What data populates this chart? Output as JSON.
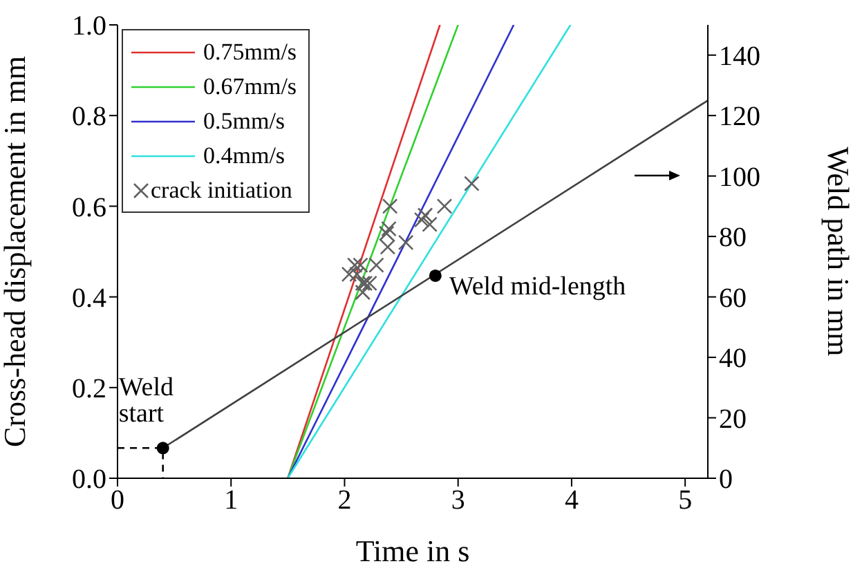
{
  "chart_data": {
    "type": "line",
    "xlabel": "Time in s",
    "ylabel": "Cross-head displacement in mm",
    "y2label": "Weld path in mm",
    "xlim": [
      0,
      5.2
    ],
    "xticks": [
      0,
      1,
      2,
      3,
      4,
      5
    ],
    "ylim": [
      0,
      1.0
    ],
    "yticks": [
      {
        "value": 0,
        "label": "0.0"
      },
      0.2,
      0.4,
      0.6,
      0.8,
      {
        "value": 1,
        "label": "1.0"
      }
    ],
    "y2lim": [
      0,
      150
    ],
    "y2ticks": [
      0,
      20,
      40,
      60,
      80,
      100,
      120,
      140
    ],
    "grid": false,
    "legend": "top left",
    "series": [
      {
        "name": "0.75mm/s",
        "color": "#e03030",
        "x": [
          1.5,
          2.84
        ],
        "values": [
          0,
          1.0
        ],
        "marker": "none"
      },
      {
        "name": "0.67mm/s",
        "color": "#30d030",
        "x": [
          1.5,
          3.0
        ],
        "values": [
          0,
          1.0
        ],
        "marker": "none"
      },
      {
        "name": "0.5mm/s",
        "color": "#3030d0",
        "x": [
          1.5,
          3.49
        ],
        "values": [
          0,
          1.0
        ],
        "marker": "none"
      },
      {
        "name": "0.4mm/s",
        "color": "#30e0e0",
        "x": [
          1.5,
          3.99
        ],
        "values": [
          0,
          1.0
        ],
        "marker": "none"
      },
      {
        "name": "crack initiation",
        "type": "scatter",
        "color": "#606060",
        "marker": "cross",
        "x": [
          2.04,
          2.09,
          2.14,
          2.11,
          2.16,
          2.18,
          2.22,
          2.16,
          2.28,
          2.38,
          2.37,
          2.39,
          2.4,
          2.54,
          2.68,
          2.71,
          2.75,
          2.88,
          3.12
        ],
        "values": [
          0.45,
          0.47,
          0.47,
          0.45,
          0.43,
          0.43,
          0.43,
          0.41,
          0.47,
          0.51,
          0.54,
          0.55,
          0.6,
          0.52,
          0.57,
          0.58,
          0.56,
          0.6,
          0.65
        ]
      },
      {
        "color": "#404040",
        "axis": "y2",
        "marker": "none",
        "x": [
          0.4,
          5.2
        ],
        "values": [
          10,
          125
        ]
      },
      {
        "type": "scatter",
        "color": "#000000",
        "axis": "y2",
        "marker": "circle",
        "x": [
          0.4,
          2.8
        ],
        "values": [
          10,
          67
        ]
      },
      {
        "color": "#000000",
        "axis": "y2",
        "marker": "none",
        "line_style": "dashed",
        "x": [
          0,
          0.4,
          0.4
        ],
        "values": [
          10,
          10,
          0
        ]
      }
    ],
    "annotations": [
      {
        "text": "Weld start",
        "x": 0.4,
        "y": 0.07
      },
      {
        "text": "Weld mid-length",
        "x": 2.8,
        "y": 0.45
      }
    ]
  }
}
